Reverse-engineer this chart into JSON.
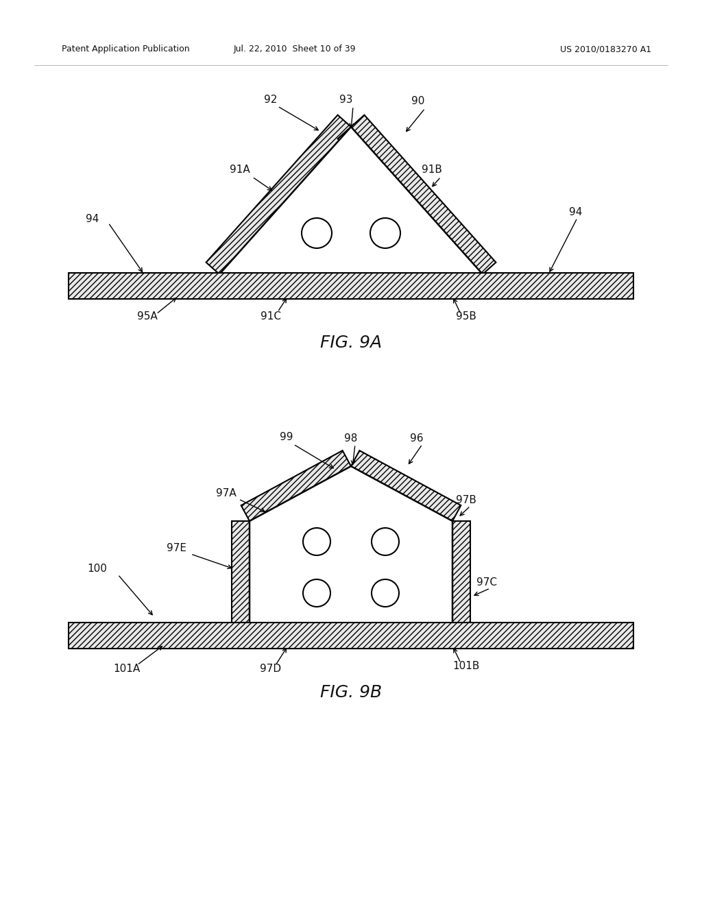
{
  "header_left": "Patent Application Publication",
  "header_mid": "Jul. 22, 2010  Sheet 10 of 39",
  "header_right": "US 2010/0183270 A1",
  "background_color": "#ffffff"
}
